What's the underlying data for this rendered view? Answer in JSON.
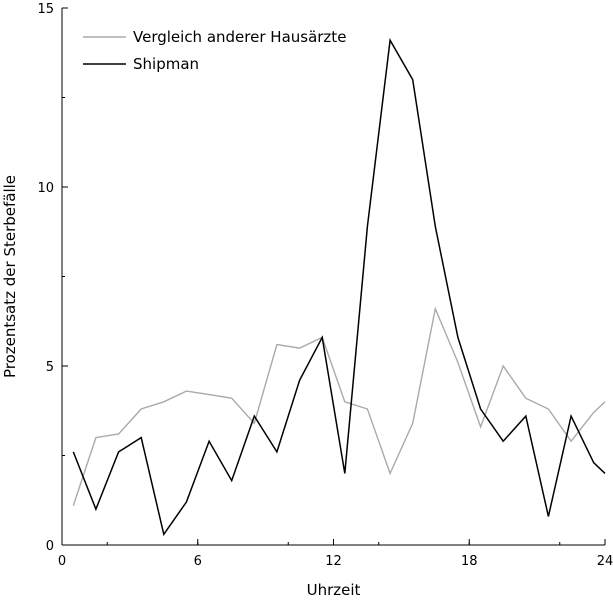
{
  "chart_data": {
    "type": "line",
    "title": "",
    "xlabel": "Uhrzeit",
    "ylabel": "Prozentsatz der Sterbefälle",
    "xlim": [
      0,
      24
    ],
    "ylim": [
      0,
      15
    ],
    "xticks": [
      "0",
      "6",
      "12",
      "18",
      "24"
    ],
    "yticks": [
      "0",
      "5",
      "10",
      "15"
    ],
    "grid": false,
    "legend_position": "top-left",
    "x": [
      0.5,
      1.5,
      2.5,
      3.5,
      4.5,
      5.5,
      6.5,
      7.5,
      8.5,
      9.5,
      10.5,
      11.5,
      12.5,
      13.5,
      14.5,
      15.5,
      16.5,
      17.5,
      18.5,
      19.5,
      20.5,
      21.5,
      22.5,
      23.5,
      24
    ],
    "series": [
      {
        "name": "Vergleich anderer Hausärzte",
        "color": "#aaaaaa",
        "values": [
          1.1,
          3.0,
          3.1,
          3.8,
          4.0,
          4.3,
          4.2,
          4.1,
          3.4,
          5.6,
          5.5,
          5.8,
          4.0,
          3.8,
          2.0,
          3.4,
          6.6,
          5.1,
          3.3,
          5.0,
          4.1,
          3.8,
          2.9,
          3.7,
          4.0
        ]
      },
      {
        "name": "Shipman",
        "color": "#000000",
        "values": [
          2.6,
          1.0,
          2.6,
          3.0,
          0.3,
          1.2,
          2.9,
          1.8,
          3.6,
          2.6,
          4.6,
          5.8,
          2.0,
          8.9,
          14.1,
          13.0,
          8.9,
          5.8,
          3.8,
          2.9,
          3.6,
          0.8,
          3.6,
          2.3,
          2.0
        ]
      }
    ]
  }
}
